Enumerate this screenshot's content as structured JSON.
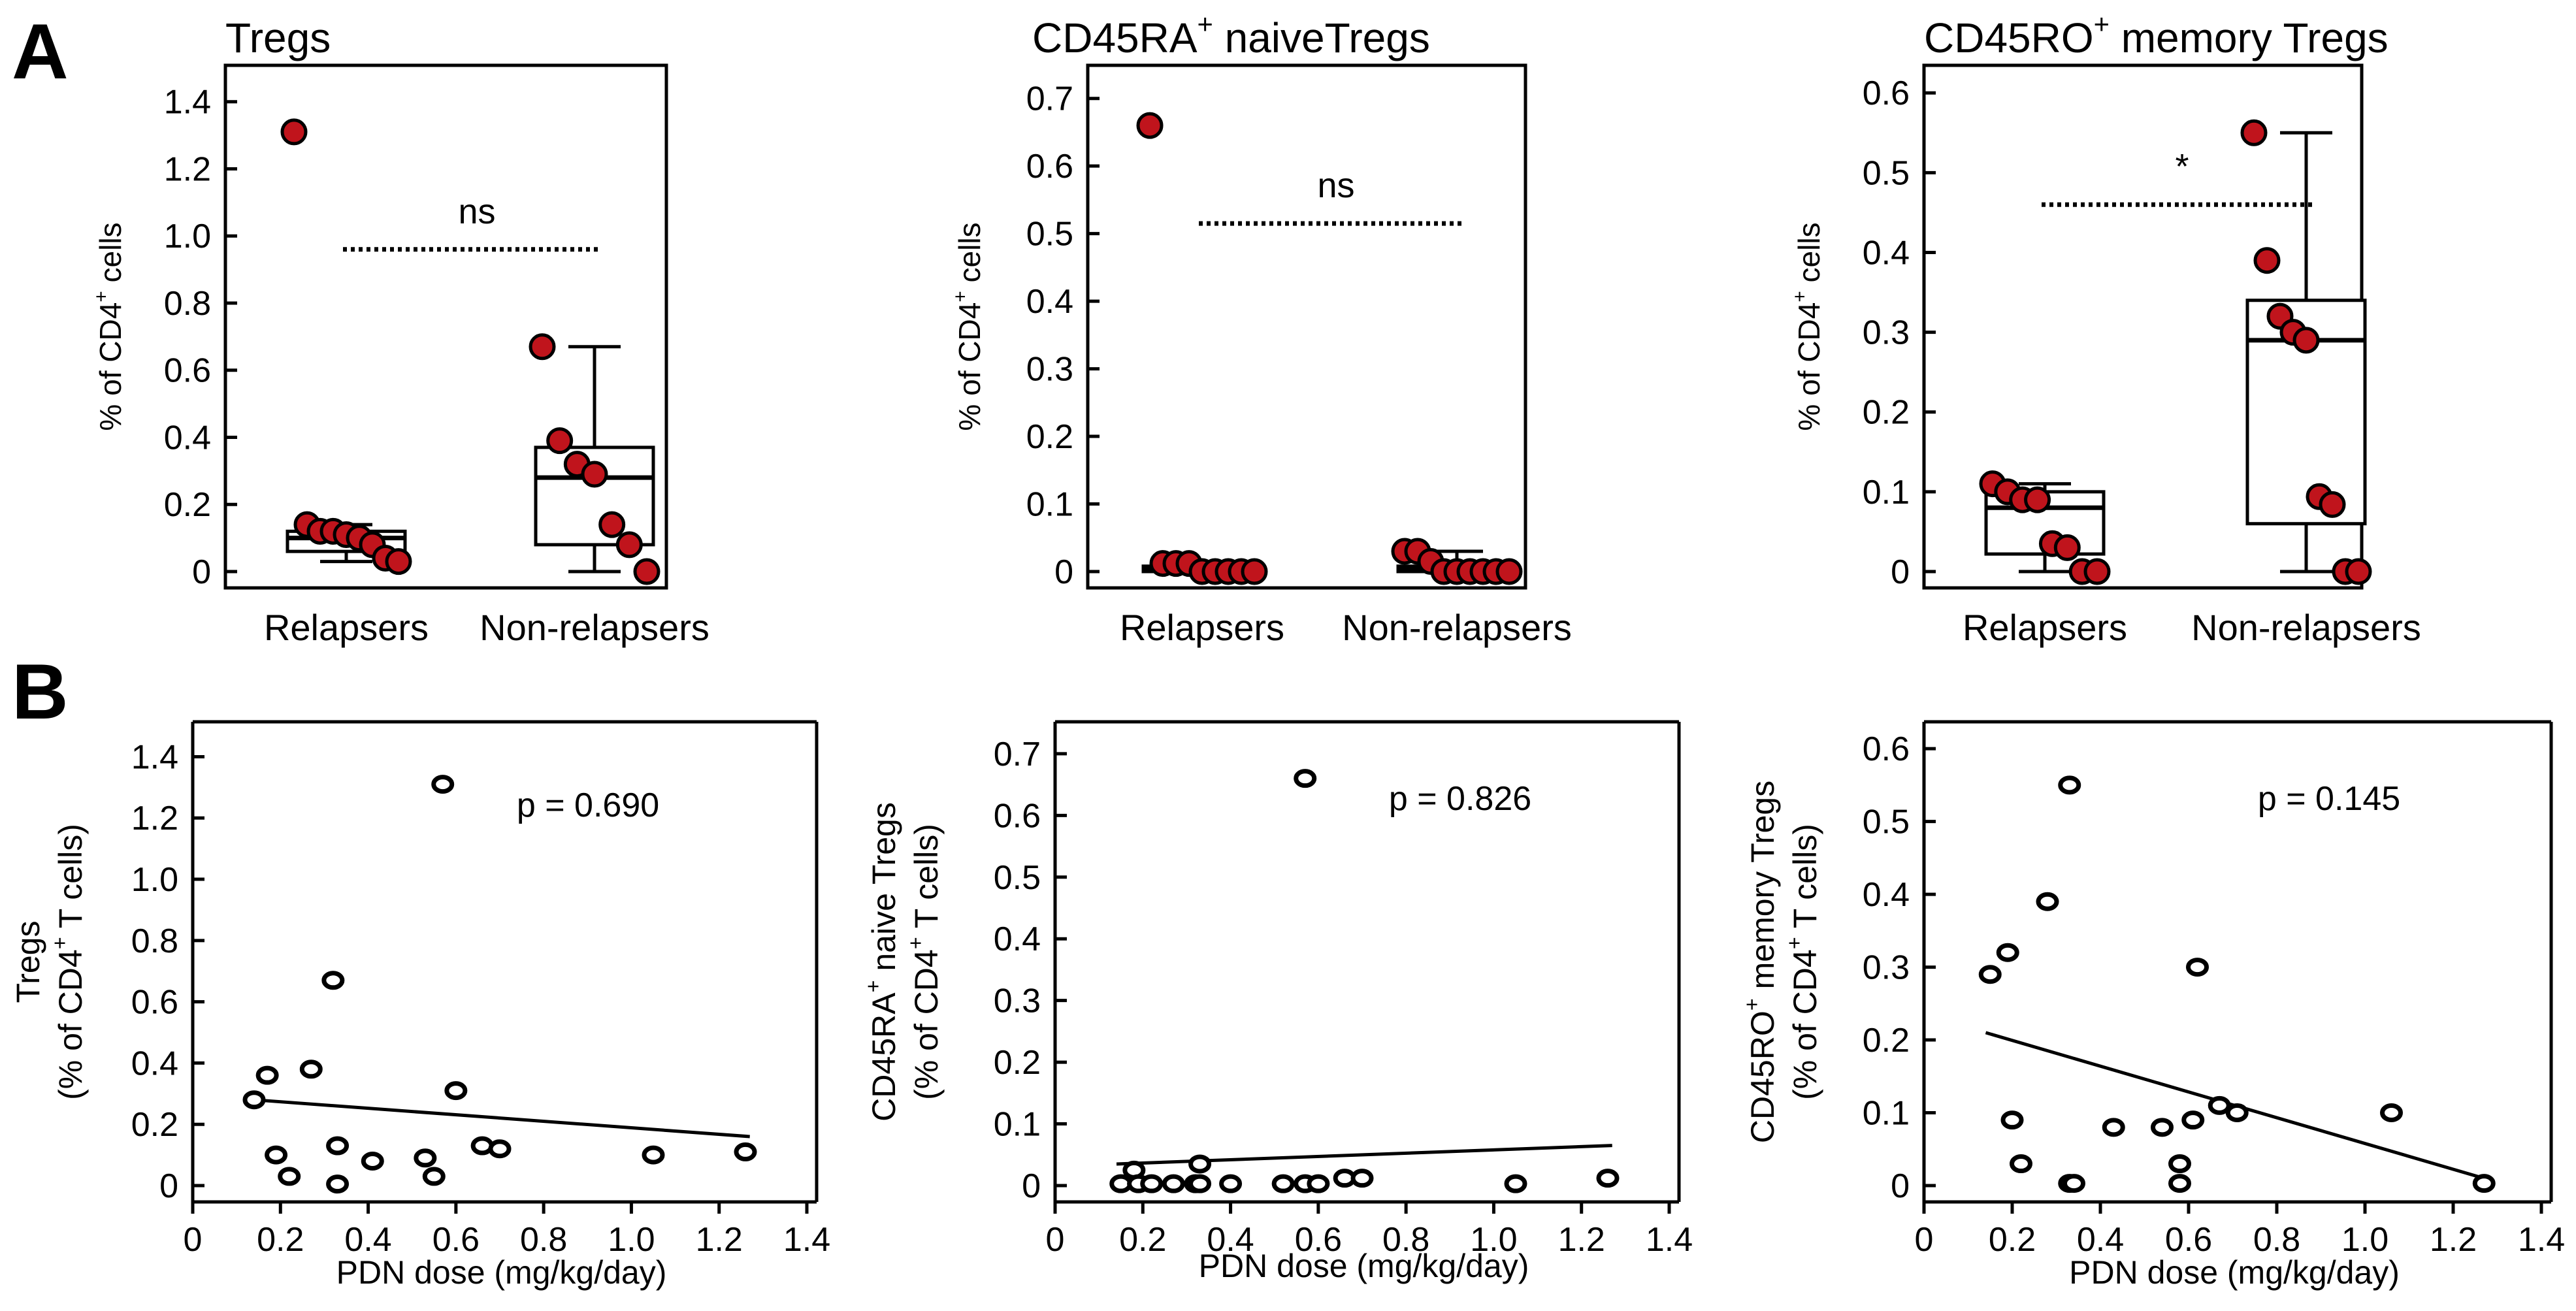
{
  "panel_letters": {
    "a": "A",
    "b": "B"
  },
  "chart_data": [
    {
      "type": "box",
      "title_main": "Tregs",
      "title_sup": "",
      "title_rest": "",
      "ylabel_pre": "% of CD4",
      "ylabel_sup": "+",
      "ylabel_post": " cells",
      "ylim": [
        0,
        1.45
      ],
      "yticks": [
        0,
        0.2,
        0.4,
        0.6,
        0.8,
        1.0,
        1.2,
        1.4
      ],
      "ytick_labels": [
        "0",
        "0.2",
        "0.4",
        "0.6",
        "0.8",
        "1.0",
        "1.2",
        "1.4"
      ],
      "categories": [
        "Relapsers",
        "Non-relapsers"
      ],
      "groups": [
        {
          "name": "Relapsers",
          "q1": 0.06,
          "median": 0.1,
          "q3": 0.12,
          "whisker_low": 0.03,
          "whisker_high": 0.14,
          "points": [
            1.31,
            0.14,
            0.12,
            0.12,
            0.11,
            0.1,
            0.08,
            0.04,
            0.03
          ]
        },
        {
          "name": "Non-relapsers",
          "q1": 0.08,
          "median": 0.28,
          "q3": 0.37,
          "whisker_low": 0.0,
          "whisker_high": 0.67,
          "points": [
            0.67,
            0.39,
            0.32,
            0.29,
            0.14,
            0.08,
            0.0
          ]
        }
      ],
      "significance": {
        "label": "ns",
        "level": 0.96
      }
    },
    {
      "type": "box",
      "title_main": "CD45RA",
      "title_sup": "+",
      "title_rest": " naiveTregs",
      "ylabel_pre": "% of CD4",
      "ylabel_sup": "+",
      "ylabel_post": " cells",
      "ylim": [
        0,
        0.72
      ],
      "yticks": [
        0,
        0.1,
        0.2,
        0.3,
        0.4,
        0.5,
        0.6,
        0.7
      ],
      "ytick_labels": [
        "0",
        "0.1",
        "0.2",
        "0.3",
        "0.4",
        "0.5",
        "0.6",
        "0.7"
      ],
      "categories": [
        "Relapsers",
        "Non-relapsers"
      ],
      "groups": [
        {
          "name": "Relapsers",
          "q1": 0.0,
          "median": 0.003,
          "q3": 0.008,
          "whisker_low": 0.0,
          "whisker_high": 0.012,
          "points": [
            0.66,
            0.012,
            0.012,
            0.012,
            0.0,
            0.0,
            0.0,
            0.0,
            0.0
          ]
        },
        {
          "name": "Non-relapsers",
          "q1": 0.0,
          "median": 0.003,
          "q3": 0.008,
          "whisker_low": 0.0,
          "whisker_high": 0.03,
          "points": [
            0.03,
            0.03,
            0.015,
            0.0,
            0.0,
            0.0,
            0.0,
            0.0,
            0.0
          ]
        }
      ],
      "significance": {
        "label": "ns",
        "level": 0.515
      }
    },
    {
      "type": "box",
      "title_main": "CD45RO",
      "title_sup": "+",
      "title_rest": "  memory Tregs",
      "ylabel_pre": "% of CD4",
      "ylabel_sup": "+",
      "ylabel_post": " cells",
      "ylim": [
        0,
        0.61
      ],
      "yticks": [
        0,
        0.1,
        0.2,
        0.3,
        0.4,
        0.5,
        0.6
      ],
      "ytick_labels": [
        "0",
        "0.1",
        "0.2",
        "0.3",
        "0.4",
        "0.5",
        "0.6"
      ],
      "categories": [
        "Relapsers",
        "Non-relapsers"
      ],
      "groups": [
        {
          "name": "Relapsers",
          "q1": 0.022,
          "median": 0.08,
          "q3": 0.1,
          "whisker_low": 0.0,
          "whisker_high": 0.11,
          "points": [
            0.11,
            0.1,
            0.09,
            0.09,
            0.035,
            0.03,
            0.0,
            0.0
          ]
        },
        {
          "name": "Non-relapsers",
          "q1": 0.06,
          "median": 0.29,
          "q3": 0.34,
          "whisker_low": 0.0,
          "whisker_high": 0.55,
          "points": [
            0.55,
            0.39,
            0.32,
            0.3,
            0.29,
            0.094,
            0.084,
            0.0,
            0.0
          ]
        }
      ],
      "significance": {
        "label": "*",
        "level": 0.46
      }
    },
    {
      "type": "scatter",
      "xlabel": "PDN dose (mg/kg/day)",
      "ylabel_line1": "Tregs",
      "ylabel_line2_pre": "(% of CD4",
      "ylabel_line2_sup": "+",
      "ylabel_line2_post": " T cells)",
      "xlim": [
        0,
        1.4
      ],
      "xticks": [
        0,
        0.2,
        0.4,
        0.6,
        0.8,
        1.0,
        1.2,
        1.4
      ],
      "xtick_labels": [
        "0",
        "0.2",
        "0.4",
        "0.6",
        "0.8",
        "1.0",
        "1.2",
        "1.4"
      ],
      "ylim": [
        0,
        1.45
      ],
      "yticks": [
        0,
        0.2,
        0.4,
        0.6,
        0.8,
        1.0,
        1.2,
        1.4
      ],
      "ytick_labels": [
        "0",
        "0.2",
        "0.4",
        "0.6",
        "0.8",
        "1.0",
        "1.2",
        "1.4"
      ],
      "x": [
        0.57,
        0.32,
        0.27,
        0.17,
        0.14,
        0.6,
        0.33,
        0.66,
        0.7,
        0.19,
        0.41,
        0.53,
        1.05,
        1.26,
        0.22,
        0.33,
        0.55
      ],
      "y": [
        1.31,
        0.67,
        0.38,
        0.36,
        0.28,
        0.31,
        0.13,
        0.13,
        0.12,
        0.1,
        0.08,
        0.09,
        0.1,
        0.11,
        0.03,
        0.005,
        0.03
      ],
      "fit": {
        "x": [
          0.14,
          1.27
        ],
        "y": [
          0.28,
          0.16
        ]
      },
      "pvalue": "p = 0.690"
    },
    {
      "type": "scatter",
      "xlabel": "PDN dose (mg/kg/day)",
      "ylabel_line1_pre": "CD45RA",
      "ylabel_line1_sup": "+",
      "ylabel_line1_post": " naive Tregs",
      "ylabel_line2_pre": "(% of CD4",
      "ylabel_line2_sup": "+",
      "ylabel_line2_post": " T cells)",
      "xlim": [
        0,
        1.4
      ],
      "xticks": [
        0,
        0.2,
        0.4,
        0.6,
        0.8,
        1.0,
        1.2,
        1.4
      ],
      "xtick_labels": [
        "0",
        "0.2",
        "0.4",
        "0.6",
        "0.8",
        "1.0",
        "1.2",
        "1.4"
      ],
      "ylim": [
        0,
        0.72
      ],
      "yticks": [
        0,
        0.1,
        0.2,
        0.3,
        0.4,
        0.5,
        0.6,
        0.7
      ],
      "ytick_labels": [
        "0",
        "0.1",
        "0.2",
        "0.3",
        "0.4",
        "0.5",
        "0.6",
        "0.7"
      ],
      "x": [
        0.57,
        0.15,
        0.18,
        0.19,
        0.22,
        0.27,
        0.32,
        0.33,
        0.33,
        0.4,
        0.52,
        0.57,
        0.6,
        0.66,
        0.7,
        1.05,
        1.26
      ],
      "y": [
        0.66,
        0.003,
        0.025,
        0.003,
        0.003,
        0.003,
        0.003,
        0.035,
        0.003,
        0.003,
        0.003,
        0.003,
        0.003,
        0.012,
        0.012,
        0.003,
        0.012
      ],
      "fit": {
        "x": [
          0.14,
          1.27
        ],
        "y": [
          0.035,
          0.065
        ]
      },
      "pvalue": "p = 0.826"
    },
    {
      "type": "scatter",
      "xlabel": "PDN dose (mg/kg/day)",
      "ylabel_line1_pre": "CD45RO",
      "ylabel_line1_sup": "+",
      "ylabel_line1_post": " memory Tregs",
      "ylabel_line2_pre": "(% of CD4",
      "ylabel_line2_sup": "+",
      "ylabel_line2_post": " T cells)",
      "xlim": [
        0,
        1.4
      ],
      "xticks": [
        0,
        0.2,
        0.4,
        0.6,
        0.8,
        1.0,
        1.2,
        1.4
      ],
      "xtick_labels": [
        "0",
        "0.2",
        "0.4",
        "0.6",
        "0.8",
        "1.0",
        "1.2",
        "1.4"
      ],
      "ylim": [
        0,
        0.61
      ],
      "yticks": [
        0,
        0.1,
        0.2,
        0.3,
        0.4,
        0.5,
        0.6
      ],
      "ytick_labels": [
        "0",
        "0.1",
        "0.2",
        "0.3",
        "0.4",
        "0.5",
        "0.6"
      ],
      "x": [
        0.33,
        0.28,
        0.19,
        0.15,
        0.62,
        0.2,
        0.67,
        0.71,
        1.06,
        0.61,
        0.43,
        0.54,
        0.58,
        0.22,
        0.33,
        0.34,
        0.58,
        1.27
      ],
      "y": [
        0.55,
        0.39,
        0.32,
        0.29,
        0.3,
        0.09,
        0.11,
        0.1,
        0.1,
        0.09,
        0.08,
        0.08,
        0.03,
        0.03,
        0.003,
        0.003,
        0.003,
        0.003
      ],
      "fit": {
        "x": [
          0.14,
          1.27
        ],
        "y": [
          0.21,
          0.01
        ]
      },
      "pvalue": "p = 0.145"
    }
  ]
}
